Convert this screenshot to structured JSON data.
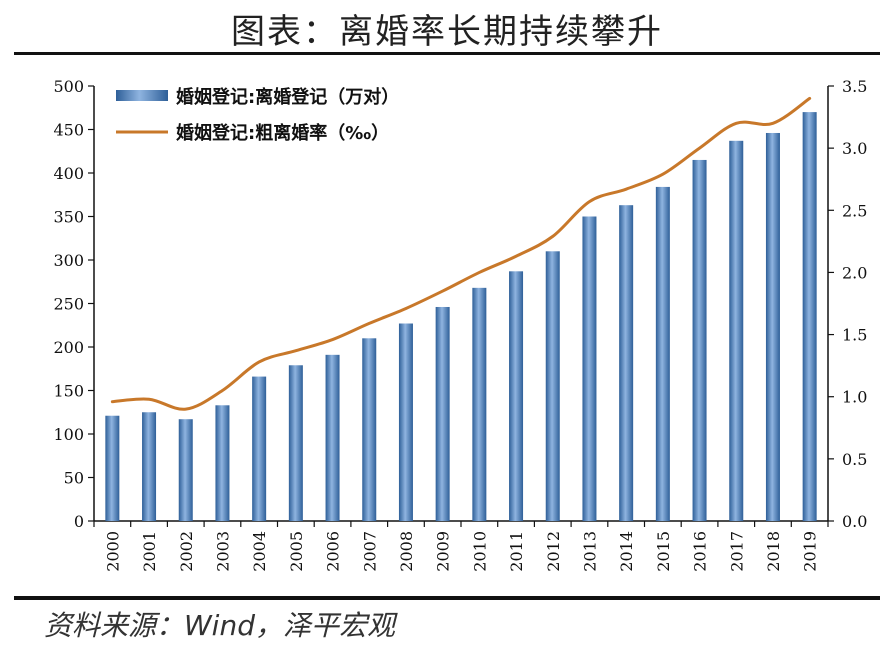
{
  "title": "图表：离婚率长期持续攀升",
  "source": "资料来源：Wind，泽平宏观",
  "chart_data": {
    "type": "bar",
    "categories": [
      "2000",
      "2001",
      "2002",
      "2003",
      "2004",
      "2005",
      "2006",
      "2007",
      "2008",
      "2009",
      "2010",
      "2011",
      "2012",
      "2013",
      "2014",
      "2015",
      "2016",
      "2017",
      "2018",
      "2019"
    ],
    "series": [
      {
        "name": "婚姻登记:离婚登记（万对）",
        "type": "bar",
        "axis": "left",
        "color": "#4f81bd",
        "values": [
          121,
          125,
          117,
          133,
          166,
          179,
          191,
          210,
          227,
          246,
          268,
          287,
          310,
          350,
          363,
          384,
          415,
          437,
          446,
          470
        ]
      },
      {
        "name": "婚姻登记:粗离婚率（‰）",
        "type": "line",
        "axis": "right",
        "color": "#c8782a",
        "values": [
          0.96,
          0.98,
          0.9,
          1.05,
          1.28,
          1.37,
          1.46,
          1.59,
          1.71,
          1.85,
          2.0,
          2.13,
          2.29,
          2.57,
          2.67,
          2.79,
          3.0,
          3.2,
          3.2,
          3.4
        ]
      }
    ],
    "y_left": {
      "min": 0,
      "max": 500,
      "step": 50,
      "ticks": [
        "0",
        "50",
        "100",
        "150",
        "200",
        "250",
        "300",
        "350",
        "400",
        "450",
        "500"
      ]
    },
    "y_right": {
      "min": 0,
      "max": 3.5,
      "step": 0.5,
      "ticks": [
        "0.0",
        "0.5",
        "1.0",
        "1.5",
        "2.0",
        "2.5",
        "3.0",
        "3.5"
      ]
    },
    "legend_position": "top-left",
    "grid": false
  }
}
